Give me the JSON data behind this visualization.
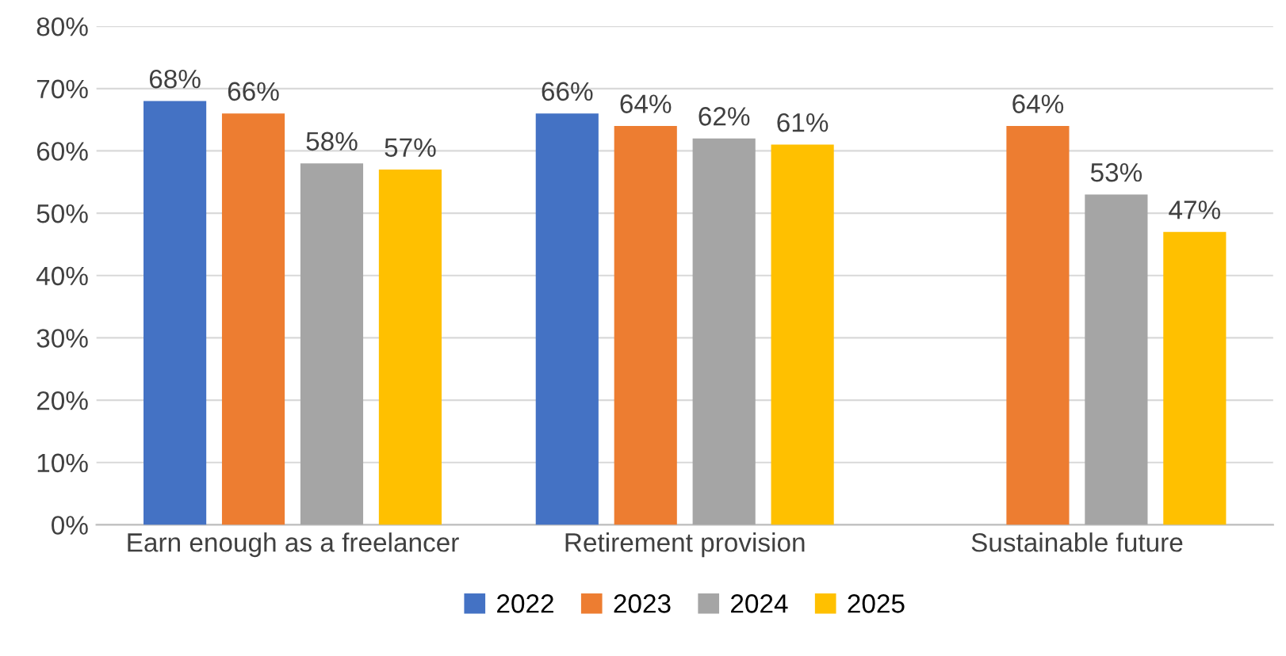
{
  "chart_data": {
    "type": "bar",
    "categories": [
      "Earn enough as a freelancer",
      "Retirement provision",
      "Sustainable future"
    ],
    "series": [
      {
        "name": "2022",
        "color": "#4472c4",
        "values": [
          68,
          66,
          null
        ],
        "value_labels": [
          "68%",
          "66%",
          null
        ]
      },
      {
        "name": "2023",
        "color": "#ed7d31",
        "values": [
          66,
          64,
          64
        ],
        "value_labels": [
          "66%",
          "64%",
          "64%"
        ]
      },
      {
        "name": "2024",
        "color": "#a5a5a5",
        "values": [
          58,
          62,
          53
        ],
        "value_labels": [
          "58%",
          "62%",
          "53%"
        ]
      },
      {
        "name": "2025",
        "color": "#ffc000",
        "values": [
          57,
          61,
          47
        ],
        "value_labels": [
          "57%",
          "61%",
          "47%"
        ]
      }
    ],
    "ylim": [
      0,
      80
    ],
    "yticks": [
      {
        "value": 0,
        "label": "0%"
      },
      {
        "value": 10,
        "label": "10%"
      },
      {
        "value": 20,
        "label": "20%"
      },
      {
        "value": 30,
        "label": "30%"
      },
      {
        "value": 40,
        "label": "40%"
      },
      {
        "value": 50,
        "label": "50%"
      },
      {
        "value": 60,
        "label": "60%"
      },
      {
        "value": 70,
        "label": "70%"
      },
      {
        "value": 80,
        "label": "80%"
      }
    ],
    "grid": "y",
    "legend": "bottom"
  }
}
